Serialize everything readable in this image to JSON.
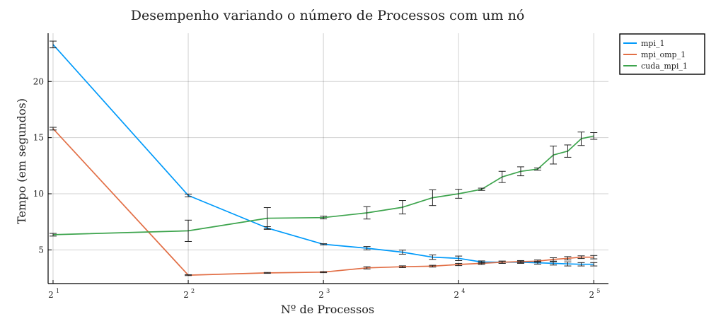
{
  "chart_data": {
    "type": "line",
    "title": "Desempenho variando o número de Processos com um nó",
    "xlabel": "Nº de Processos",
    "ylabel": "Tempo (em segundos)",
    "x_scale": "log2",
    "xlim": [
      1.95,
      34.5
    ],
    "ylim": [
      2.0,
      24.3
    ],
    "x_ticks": [
      {
        "value": 2,
        "base": "2",
        "exp": "1"
      },
      {
        "value": 4,
        "base": "2",
        "exp": "2"
      },
      {
        "value": 8,
        "base": "2",
        "exp": "3"
      },
      {
        "value": 16,
        "base": "2",
        "exp": "4"
      },
      {
        "value": 32,
        "base": "2",
        "exp": "5"
      }
    ],
    "y_ticks": [
      5,
      10,
      15,
      20
    ],
    "grid": true,
    "legend_position": "top-right",
    "series": [
      {
        "name": "mpi_1",
        "color": "#009AFA",
        "points": [
          {
            "x": 2,
            "y": 23.3,
            "err": 0.3
          },
          {
            "x": 4,
            "y": 9.85,
            "err": 0.12
          },
          {
            "x": 6,
            "y": 6.95,
            "err": 0.12
          },
          {
            "x": 8,
            "y": 5.5,
            "err": 0.05
          },
          {
            "x": 10,
            "y": 5.15,
            "err": 0.15
          },
          {
            "x": 12,
            "y": 4.8,
            "err": 0.18
          },
          {
            "x": 14,
            "y": 4.35,
            "err": 0.2
          },
          {
            "x": 16,
            "y": 4.25,
            "err": 0.2
          },
          {
            "x": 18,
            "y": 3.92,
            "err": 0.1
          },
          {
            "x": 20,
            "y": 3.9,
            "err": 0.1
          },
          {
            "x": 22,
            "y": 3.9,
            "err": 0.1
          },
          {
            "x": 24,
            "y": 3.85,
            "err": 0.12
          },
          {
            "x": 26,
            "y": 3.8,
            "err": 0.15
          },
          {
            "x": 28,
            "y": 3.75,
            "err": 0.18
          },
          {
            "x": 30,
            "y": 3.72,
            "err": 0.15
          },
          {
            "x": 32,
            "y": 3.72,
            "err": 0.15
          }
        ]
      },
      {
        "name": "mpi_omp_1",
        "color": "#E26F46",
        "points": [
          {
            "x": 2,
            "y": 15.8,
            "err": 0.12
          },
          {
            "x": 4,
            "y": 2.75,
            "err": 0.04
          },
          {
            "x": 6,
            "y": 2.95,
            "err": 0.04
          },
          {
            "x": 8,
            "y": 3.02,
            "err": 0.05
          },
          {
            "x": 10,
            "y": 3.4,
            "err": 0.1
          },
          {
            "x": 12,
            "y": 3.5,
            "err": 0.08
          },
          {
            "x": 14,
            "y": 3.55,
            "err": 0.08
          },
          {
            "x": 16,
            "y": 3.7,
            "err": 0.1
          },
          {
            "x": 18,
            "y": 3.8,
            "err": 0.1
          },
          {
            "x": 20,
            "y": 3.9,
            "err": 0.1
          },
          {
            "x": 22,
            "y": 3.95,
            "err": 0.1
          },
          {
            "x": 24,
            "y": 4.0,
            "err": 0.1
          },
          {
            "x": 26,
            "y": 4.15,
            "err": 0.15
          },
          {
            "x": 28,
            "y": 4.25,
            "err": 0.15
          },
          {
            "x": 30,
            "y": 4.35,
            "err": 0.12
          },
          {
            "x": 32,
            "y": 4.35,
            "err": 0.15
          }
        ]
      },
      {
        "name": "cuda_mpi_1",
        "color": "#3DA44D",
        "points": [
          {
            "x": 2,
            "y": 6.35,
            "err": 0.12
          },
          {
            "x": 4,
            "y": 6.7,
            "err": 0.95
          },
          {
            "x": 6,
            "y": 7.82,
            "err": 0.95
          },
          {
            "x": 8,
            "y": 7.88,
            "err": 0.12
          },
          {
            "x": 10,
            "y": 8.3,
            "err": 0.55
          },
          {
            "x": 12,
            "y": 8.8,
            "err": 0.6
          },
          {
            "x": 14,
            "y": 9.65,
            "err": 0.7
          },
          {
            "x": 16,
            "y": 10.0,
            "err": 0.4
          },
          {
            "x": 18,
            "y": 10.4,
            "err": 0.1
          },
          {
            "x": 20,
            "y": 11.5,
            "err": 0.5
          },
          {
            "x": 22,
            "y": 12.0,
            "err": 0.4
          },
          {
            "x": 24,
            "y": 12.2,
            "err": 0.1
          },
          {
            "x": 26,
            "y": 13.45,
            "err": 0.8
          },
          {
            "x": 28,
            "y": 13.8,
            "err": 0.55
          },
          {
            "x": 30,
            "y": 14.9,
            "err": 0.6
          },
          {
            "x": 32,
            "y": 15.15,
            "err": 0.3
          }
        ]
      }
    ]
  }
}
